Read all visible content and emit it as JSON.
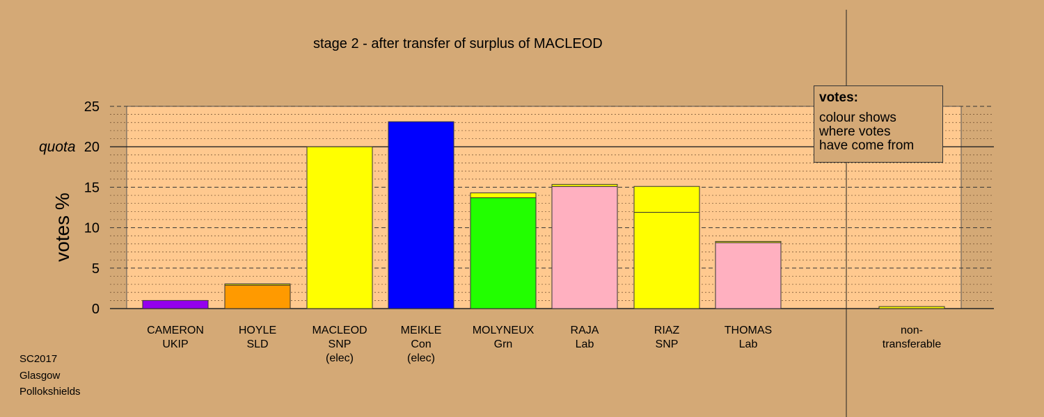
{
  "title": "stage 2 - after transfer of surplus of MACLEOD",
  "footer": [
    "SC2017",
    "Glasgow",
    "Pollokshields"
  ],
  "legend": {
    "title": "votes:",
    "body": "colour shows\nwhere votes\nhave come from"
  },
  "colors": {
    "background": "#d4a976",
    "plot_bg": "#ffc98f",
    "UKIP": "#9400ee",
    "SLD": "#ff9a00",
    "SNP": "#ffff00",
    "Con": "#0000ff",
    "Grn": "#22ff00",
    "Lab": "#ffb0c0"
  },
  "chart_data": {
    "type": "bar",
    "stacked": true,
    "ylabel": "votes %",
    "ylim": [
      0,
      25
    ],
    "yticks": [
      0,
      5,
      10,
      15,
      20,
      25
    ],
    "quota": {
      "label": "quota",
      "value": 20
    },
    "grid": true,
    "categories": [
      {
        "lines": [
          "CAMERON",
          "UKIP"
        ]
      },
      {
        "lines": [
          "HOYLE",
          "SLD"
        ]
      },
      {
        "lines": [
          "MACLEOD",
          "SNP",
          "(elec)"
        ]
      },
      {
        "lines": [
          "MEIKLE",
          "Con",
          "(elec)"
        ]
      },
      {
        "lines": [
          "MOLYNEUX",
          "Grn"
        ]
      },
      {
        "lines": [
          "RAJA",
          "Lab"
        ]
      },
      {
        "lines": [
          "RIAZ",
          "SNP"
        ]
      },
      {
        "lines": [
          "THOMAS",
          "Lab"
        ]
      },
      {
        "lines": [
          "non-",
          "transferable"
        ]
      }
    ],
    "bars": [
      {
        "segments": [
          {
            "value": 1.0,
            "color": "#9400ee"
          }
        ]
      },
      {
        "segments": [
          {
            "value": 2.9,
            "color": "#ff9a00"
          },
          {
            "value": 0.15,
            "color": "#ffff00"
          }
        ]
      },
      {
        "segments": [
          {
            "value": 20.0,
            "color": "#ffff00"
          }
        ]
      },
      {
        "segments": [
          {
            "value": 23.1,
            "color": "#0000ff"
          }
        ]
      },
      {
        "segments": [
          {
            "value": 13.7,
            "color": "#22ff00"
          },
          {
            "value": 0.6,
            "color": "#ffff00"
          }
        ]
      },
      {
        "segments": [
          {
            "value": 15.1,
            "color": "#ffb0c0"
          },
          {
            "value": 0.25,
            "color": "#ffff00"
          }
        ]
      },
      {
        "segments": [
          {
            "value": 11.9,
            "color": "#ffff00"
          },
          {
            "value": 3.2,
            "color": "#ffff00"
          }
        ]
      },
      {
        "segments": [
          {
            "value": 8.15,
            "color": "#ffb0c0"
          },
          {
            "value": 0.15,
            "color": "#ffff00"
          }
        ]
      },
      {
        "segments": [
          {
            "value": 0.25,
            "color": "#ffff00"
          }
        ]
      }
    ]
  }
}
